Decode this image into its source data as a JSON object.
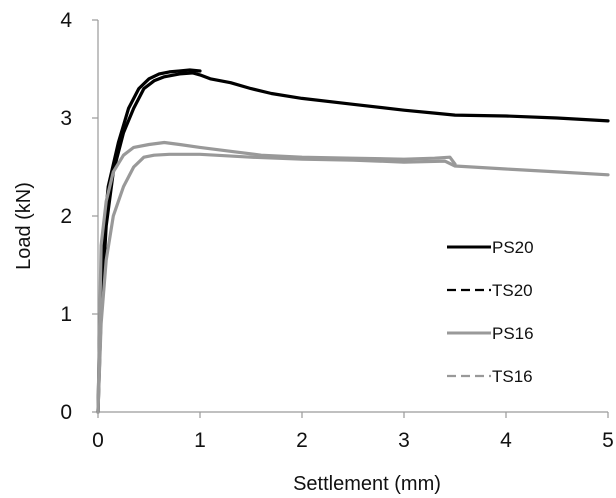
{
  "chart_data": {
    "type": "line",
    "title": "",
    "xlabel": "Settlement (mm)",
    "ylabel": "Load (kN)",
    "xlim": [
      0,
      5
    ],
    "ylim": [
      0,
      4
    ],
    "x_ticks": [
      0,
      1,
      2,
      3,
      4,
      5
    ],
    "y_ticks": [
      0,
      1,
      2,
      3,
      4
    ],
    "x_tick_labels": [
      "0",
      "1",
      "2",
      "3",
      "4",
      "5"
    ],
    "y_tick_labels": [
      "0",
      "1",
      "2",
      "3",
      "4"
    ],
    "grid": false,
    "legend_position": "right",
    "series": [
      {
        "name": "PS20",
        "color": "#000000",
        "line_style": "solid",
        "points": [
          [
            0,
            0
          ],
          [
            0.03,
            1.0
          ],
          [
            0.08,
            1.9
          ],
          [
            0.15,
            2.45
          ],
          [
            0.25,
            2.85
          ],
          [
            0.35,
            3.1
          ],
          [
            0.45,
            3.3
          ],
          [
            0.55,
            3.38
          ],
          [
            0.65,
            3.42
          ],
          [
            0.8,
            3.45
          ],
          [
            0.93,
            3.46
          ],
          [
            1.0,
            3.44
          ],
          [
            1.1,
            3.4
          ],
          [
            1.3,
            3.36
          ],
          [
            1.5,
            3.3
          ],
          [
            1.7,
            3.25
          ],
          [
            2.0,
            3.2
          ],
          [
            2.5,
            3.14
          ],
          [
            3.0,
            3.08
          ],
          [
            3.3,
            3.05
          ],
          [
            3.5,
            3.03
          ],
          [
            4.0,
            3.02
          ],
          [
            4.5,
            3.0
          ],
          [
            5.0,
            2.97
          ]
        ]
      },
      {
        "name": "TS20",
        "color": "#000000",
        "line_style": "dashed",
        "points": [
          [
            0,
            0
          ],
          [
            0.02,
            1.0
          ],
          [
            0.06,
            1.85
          ],
          [
            0.1,
            2.3
          ],
          [
            0.2,
            2.75
          ],
          [
            0.3,
            3.1
          ],
          [
            0.4,
            3.3
          ],
          [
            0.5,
            3.4
          ],
          [
            0.6,
            3.45
          ],
          [
            0.7,
            3.47
          ],
          [
            0.8,
            3.48
          ],
          [
            0.9,
            3.49
          ],
          [
            1.0,
            3.48
          ]
        ]
      },
      {
        "name": "PS16",
        "color": "#999999",
        "line_style": "solid",
        "points": [
          [
            0,
            0
          ],
          [
            0.03,
            0.9
          ],
          [
            0.08,
            1.55
          ],
          [
            0.15,
            2.0
          ],
          [
            0.25,
            2.3
          ],
          [
            0.35,
            2.5
          ],
          [
            0.45,
            2.6
          ],
          [
            0.55,
            2.62
          ],
          [
            0.7,
            2.63
          ],
          [
            1.0,
            2.63
          ],
          [
            1.5,
            2.6
          ],
          [
            2.0,
            2.58
          ],
          [
            2.5,
            2.57
          ],
          [
            3.0,
            2.55
          ],
          [
            3.4,
            2.56
          ],
          [
            3.5,
            2.51
          ],
          [
            4.0,
            2.48
          ],
          [
            4.5,
            2.45
          ],
          [
            5.0,
            2.42
          ]
        ]
      },
      {
        "name": "TS16",
        "color": "#999999",
        "line_style": "dashed",
        "points": [
          [
            0,
            0
          ],
          [
            0.03,
            1.7
          ],
          [
            0.08,
            2.15
          ],
          [
            0.15,
            2.45
          ],
          [
            0.25,
            2.62
          ],
          [
            0.35,
            2.7
          ],
          [
            0.5,
            2.73
          ],
          [
            0.65,
            2.75
          ],
          [
            0.8,
            2.73
          ],
          [
            1.0,
            2.7
          ],
          [
            1.3,
            2.66
          ],
          [
            1.6,
            2.62
          ],
          [
            2.0,
            2.6
          ],
          [
            2.5,
            2.59
          ],
          [
            3.0,
            2.58
          ],
          [
            3.3,
            2.59
          ],
          [
            3.45,
            2.6
          ],
          [
            3.5,
            2.53
          ]
        ]
      }
    ]
  }
}
